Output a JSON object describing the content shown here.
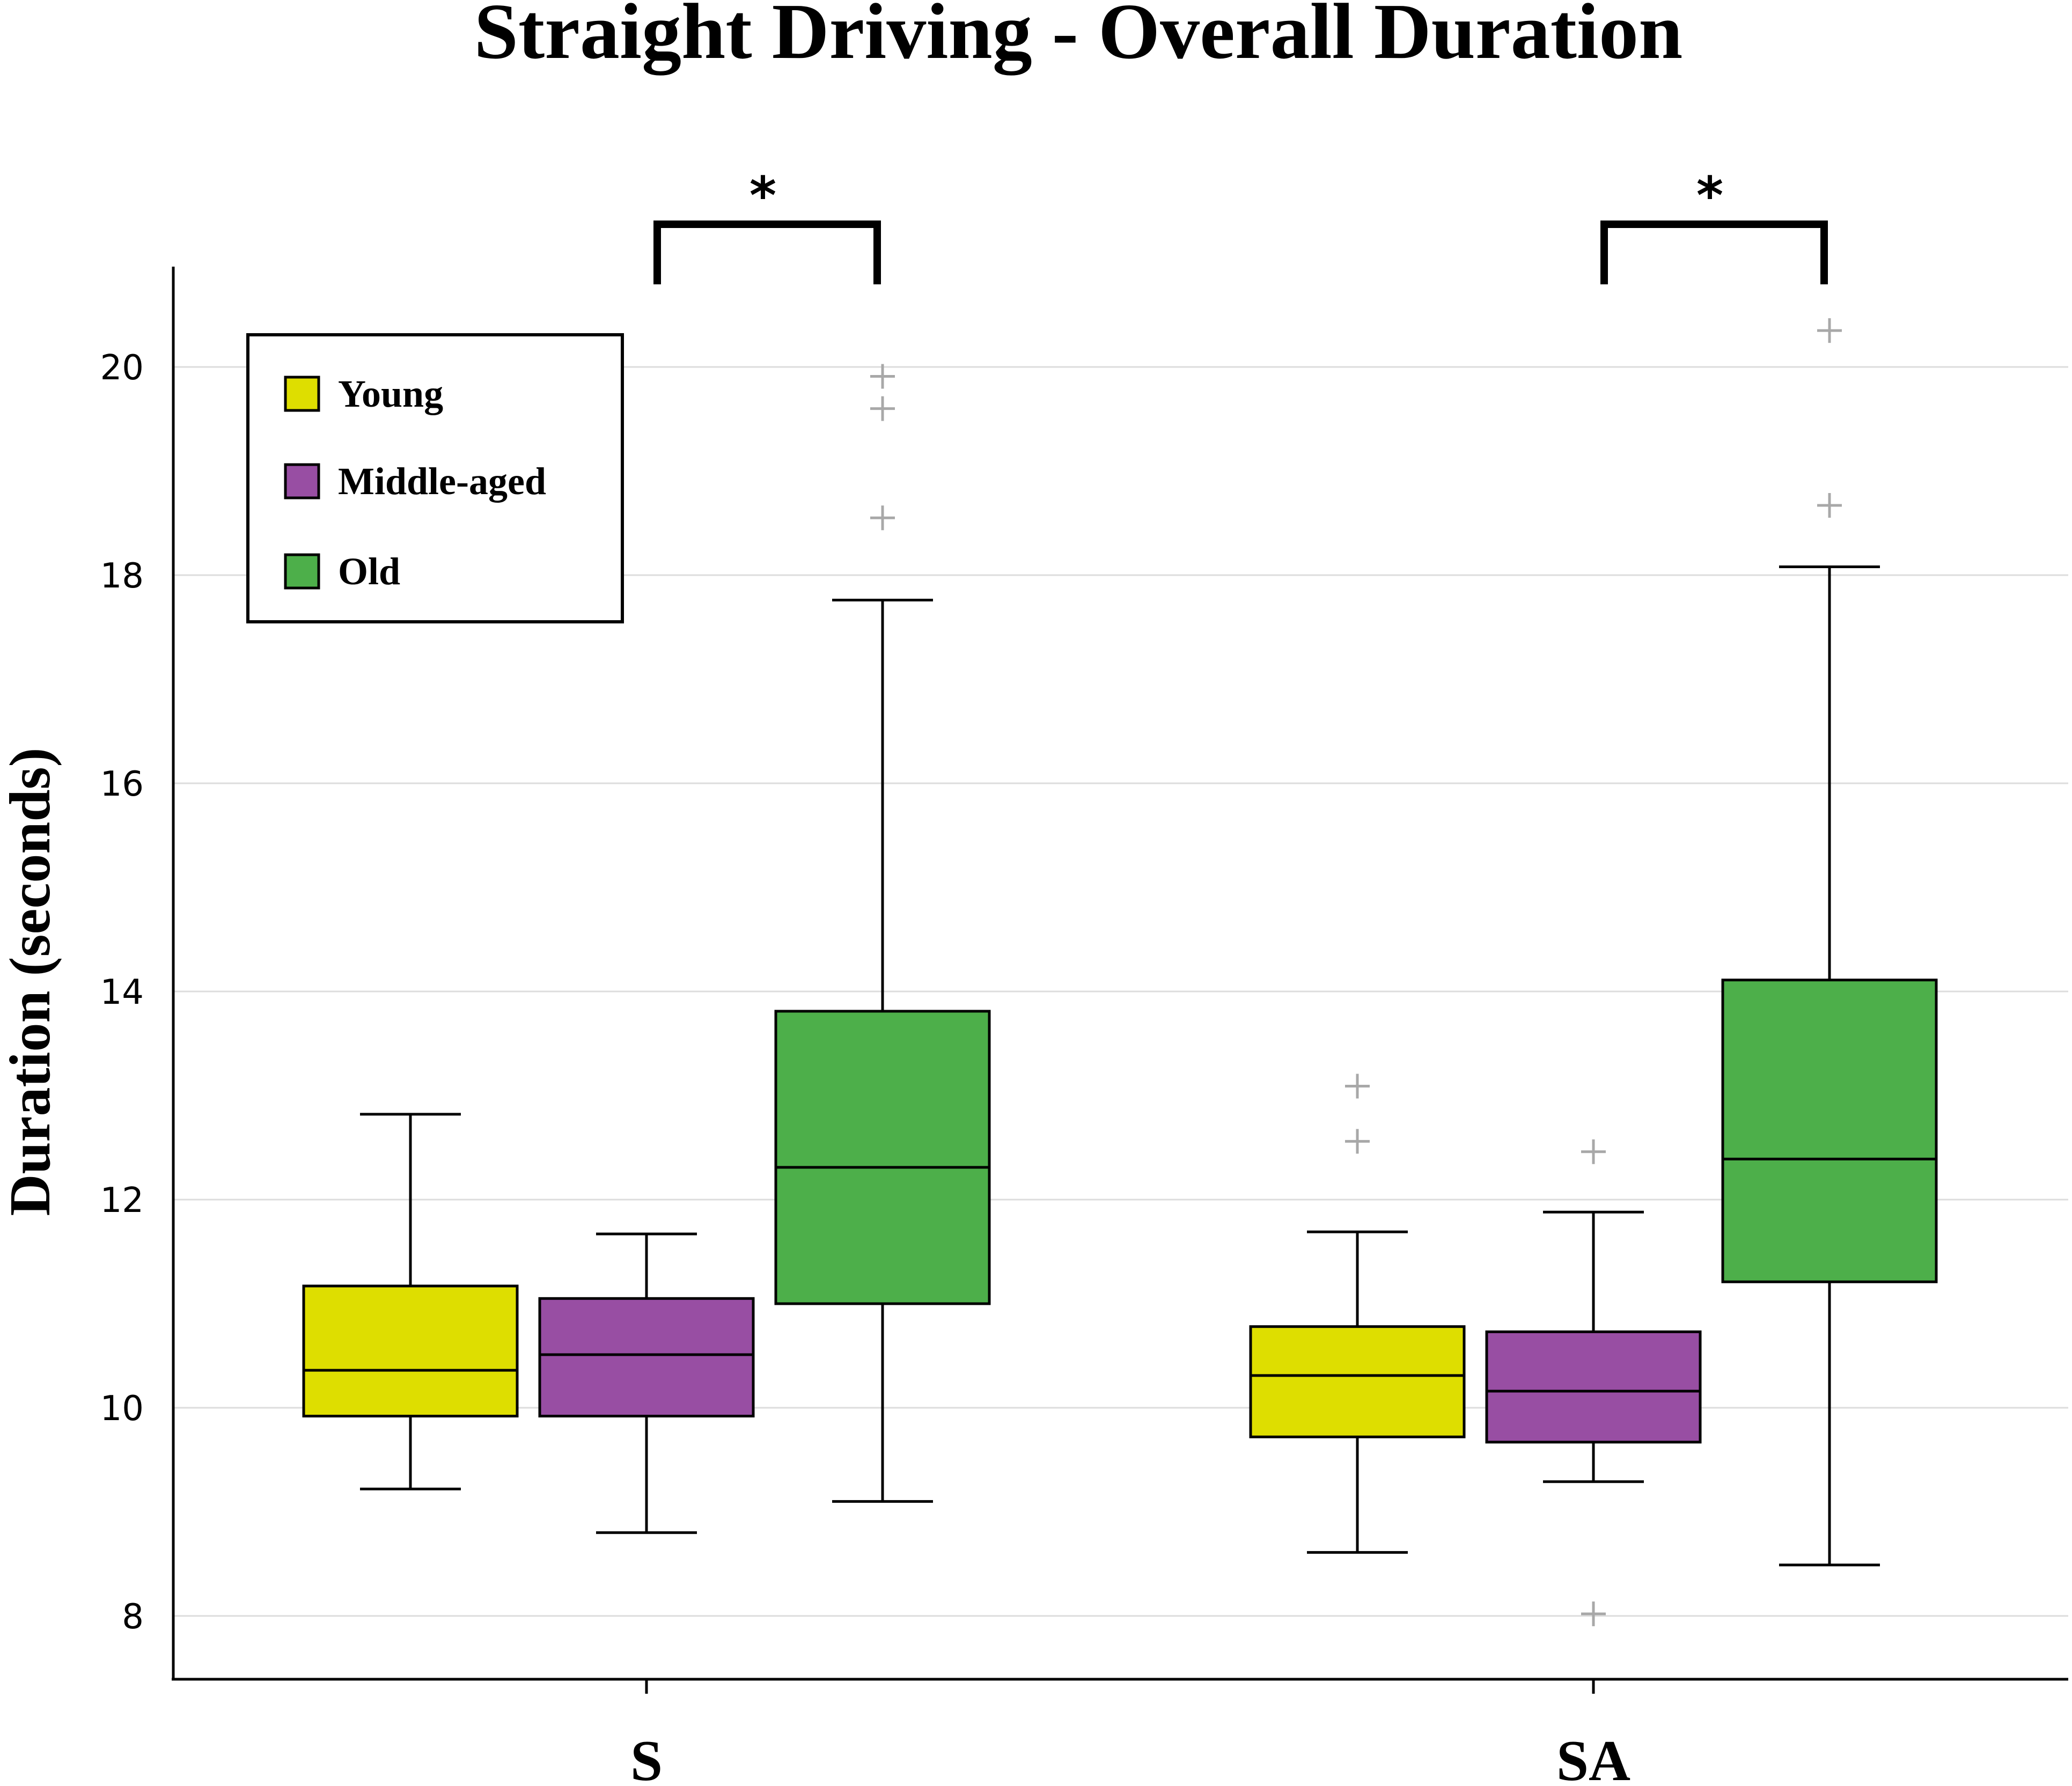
{
  "chart_data": {
    "type": "box",
    "title": "Straight Driving - Overall Duration",
    "xlabel": "",
    "ylabel": "Duration (seconds)",
    "ylim": [
      7.4,
      21.0
    ],
    "yticks": [
      8,
      10,
      12,
      14,
      16,
      18,
      20
    ],
    "grid": "horizontal",
    "legend_position": "top-left",
    "categories": [
      "S",
      "SA"
    ],
    "series": [
      {
        "name": "Young",
        "color": "#dede00",
        "boxes": [
          {
            "category": "S",
            "whisker_low": 9.22,
            "q1": 9.92,
            "median": 10.36,
            "q3": 11.17,
            "whisker_high": 12.82,
            "outliers": []
          },
          {
            "category": "SA",
            "whisker_low": 8.61,
            "q1": 9.72,
            "median": 10.31,
            "q3": 10.78,
            "whisker_high": 11.69,
            "outliers": [
              13.09,
              12.56
            ]
          }
        ]
      },
      {
        "name": "Middle-aged",
        "color": "#984ea3",
        "boxes": [
          {
            "category": "S",
            "whisker_low": 8.8,
            "q1": 9.92,
            "median": 10.51,
            "q3": 11.05,
            "whisker_high": 11.67,
            "outliers": []
          },
          {
            "category": "SA",
            "whisker_low": 9.29,
            "q1": 9.67,
            "median": 10.16,
            "q3": 10.73,
            "whisker_high": 11.88,
            "outliers": [
              12.46,
              8.02
            ]
          }
        ]
      },
      {
        "name": "Old",
        "color": "#4daf4a",
        "boxes": [
          {
            "category": "S",
            "whisker_low": 9.1,
            "q1": 11.0,
            "median": 12.31,
            "q3": 13.81,
            "whisker_high": 17.76,
            "outliers": [
              19.91,
              19.6,
              18.55
            ]
          },
          {
            "category": "SA",
            "whisker_low": 8.49,
            "q1": 11.21,
            "median": 12.39,
            "q3": 14.11,
            "whisker_high": 18.08,
            "outliers": [
              20.35,
              18.67
            ]
          }
        ]
      }
    ],
    "annotations": [
      {
        "category": "S",
        "from": "Middle-aged",
        "to": "Old",
        "label": "*"
      },
      {
        "category": "SA",
        "from": "Middle-aged",
        "to": "Old",
        "label": "*"
      }
    ]
  }
}
